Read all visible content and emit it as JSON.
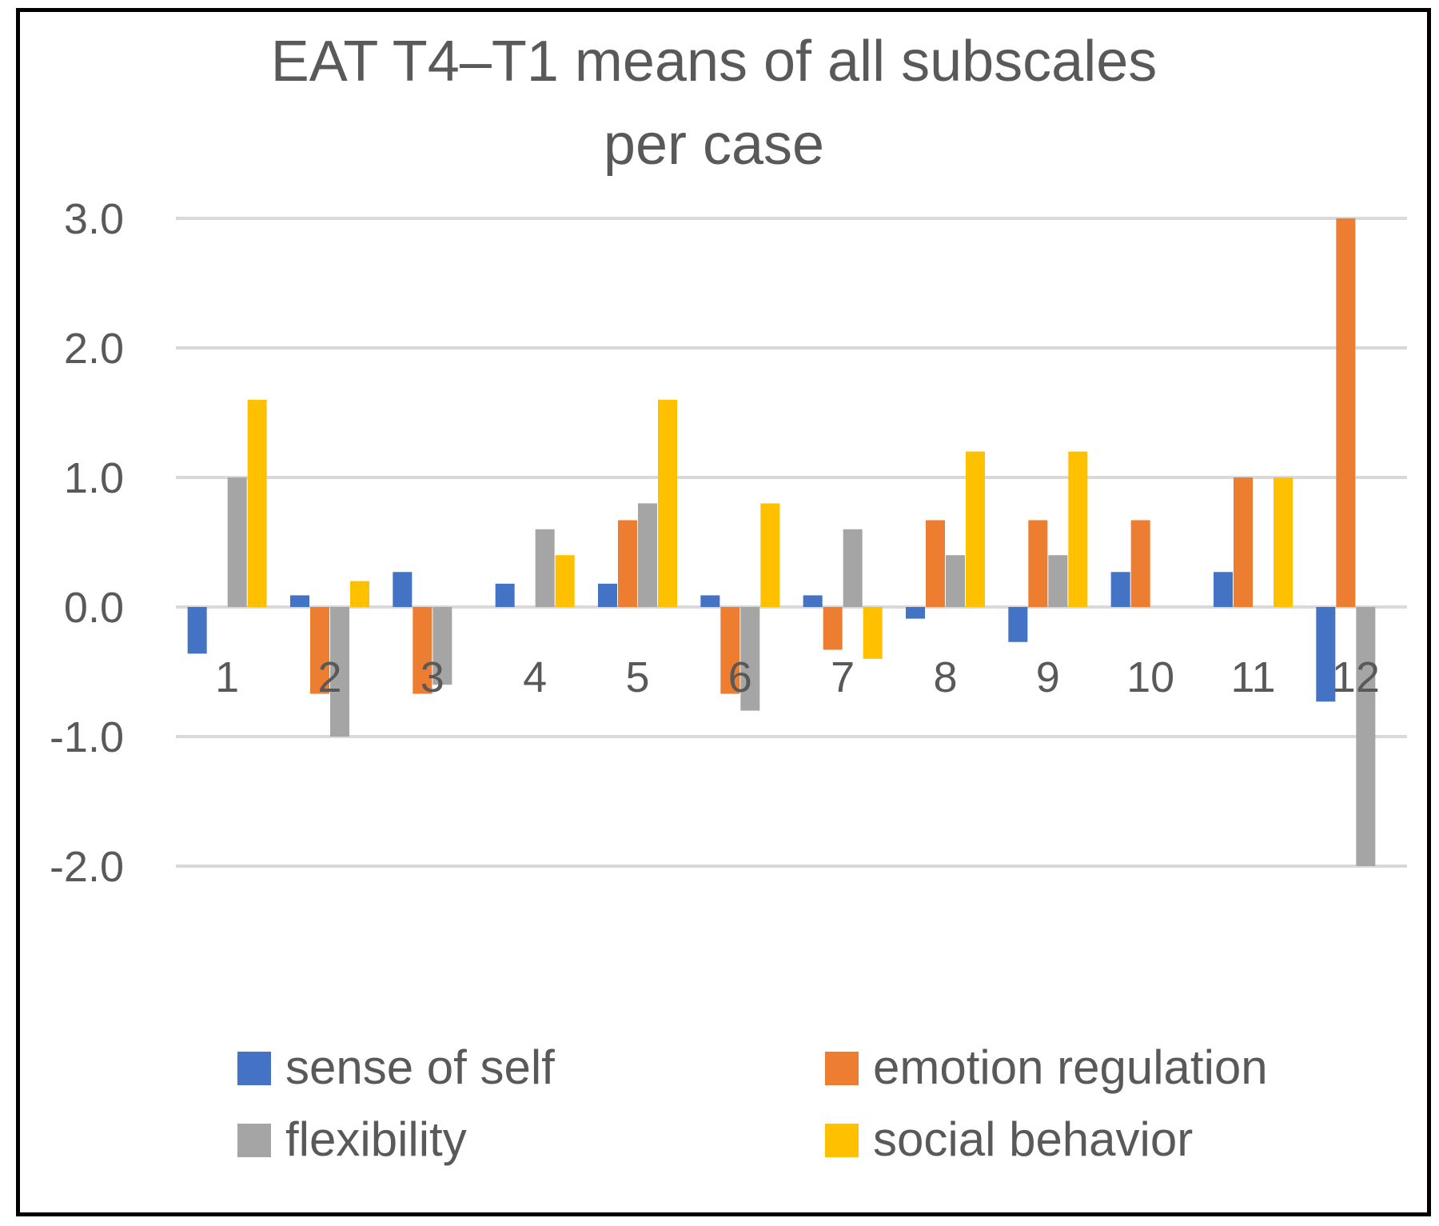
{
  "chart_data": {
    "type": "bar",
    "title": "EAT T4–T1 means of all subscales per case",
    "title_lines": [
      "EAT T4–T1 means of all subscales",
      "per case"
    ],
    "xlabel": "",
    "ylabel": "",
    "ylim": [
      -2.0,
      3.0
    ],
    "yticks": [
      3.0,
      2.0,
      1.0,
      0.0,
      -1.0,
      -2.0
    ],
    "ytick_labels": [
      "3.0",
      "2.0",
      "1.0",
      "0.0",
      "-1.0",
      "-2.0"
    ],
    "grid": true,
    "legend_position": "bottom",
    "categories": [
      "1",
      "2",
      "3",
      "4",
      "5",
      "6",
      "7",
      "8",
      "9",
      "10",
      "11",
      "12"
    ],
    "series": [
      {
        "name": "sense of self",
        "color": "#4472C4",
        "values": [
          -0.36,
          0.09,
          0.27,
          0.18,
          0.18,
          0.09,
          0.09,
          -0.09,
          -0.27,
          0.27,
          0.27,
          -0.73
        ]
      },
      {
        "name": "emotion regulation",
        "color": "#ED7D31",
        "values": [
          0,
          -0.67,
          -0.67,
          0,
          0.67,
          -0.67,
          -0.33,
          0.67,
          0.67,
          0.67,
          1.0,
          3.0
        ]
      },
      {
        "name": "flexibility",
        "color": "#A5A5A5",
        "values": [
          1.0,
          -1.0,
          -0.6,
          0.6,
          0.8,
          -0.8,
          0.6,
          0.4,
          0.4,
          0,
          0,
          -2.0
        ]
      },
      {
        "name": "social behavior",
        "color": "#FFC000",
        "values": [
          1.6,
          0.2,
          0,
          0.4,
          1.6,
          0.8,
          -0.4,
          1.2,
          1.2,
          0,
          1.0,
          0
        ]
      }
    ]
  }
}
